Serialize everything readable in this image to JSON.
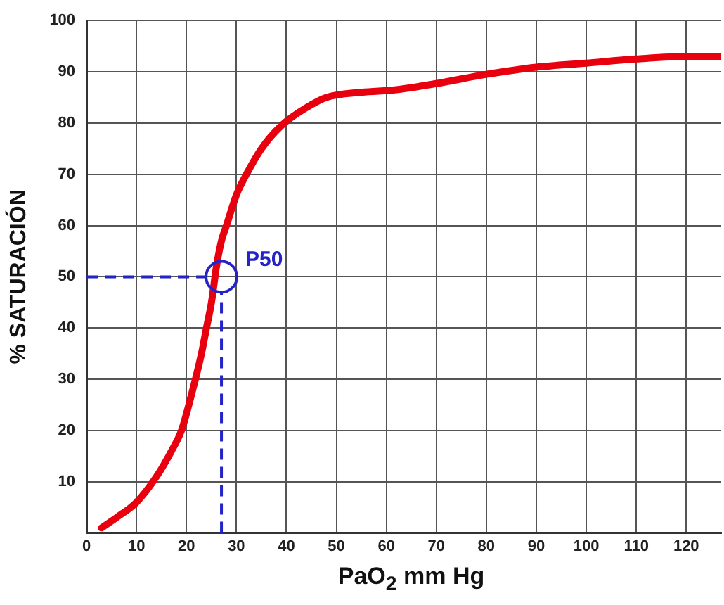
{
  "chart_data": {
    "type": "line",
    "xlabel": "PaO$_{2}$ mm Hg",
    "ylabel": "% SATURACIÓN",
    "series": [
      {
        "color": "#e8000e",
        "x": [
          3,
          6,
          10,
          14,
          17,
          19,
          21,
          23,
          24,
          25,
          26,
          27,
          28,
          30,
          32,
          35,
          39,
          44,
          48,
          55,
          62,
          70,
          80,
          90,
          100,
          110,
          120,
          127
        ],
        "values": [
          1,
          3,
          6,
          11,
          16,
          20,
          27,
          35,
          40,
          45,
          52,
          57,
          60,
          66,
          70,
          75,
          79.5,
          83,
          85,
          86,
          86.5,
          87.7,
          89.5,
          90.9,
          91.7,
          92.5,
          93,
          93
        ]
      }
    ],
    "xlim": [
      0,
      127
    ],
    "xticks": [
      0,
      10,
      20,
      30,
      40,
      50,
      60,
      70,
      80,
      90,
      100,
      110,
      120
    ],
    "ylim": [
      0,
      100
    ],
    "yticks": [
      {
        "value": 0,
        "label": null
      },
      10,
      20,
      30,
      40,
      50,
      60,
      70,
      80,
      90,
      100
    ],
    "grid": true,
    "legend": false,
    "marker": "none",
    "line_style": "solid",
    "ref_lines": [
      {
        "axis": "y",
        "value": 50,
        "color": "#2323c8",
        "line_style": "dashed"
      },
      {
        "axis": "x",
        "value": 27,
        "color": "#2323c8",
        "line_style": "dashed"
      }
    ],
    "annotations": [
      {
        "text": "P50",
        "x": 27,
        "y": 50
      }
    ]
  }
}
